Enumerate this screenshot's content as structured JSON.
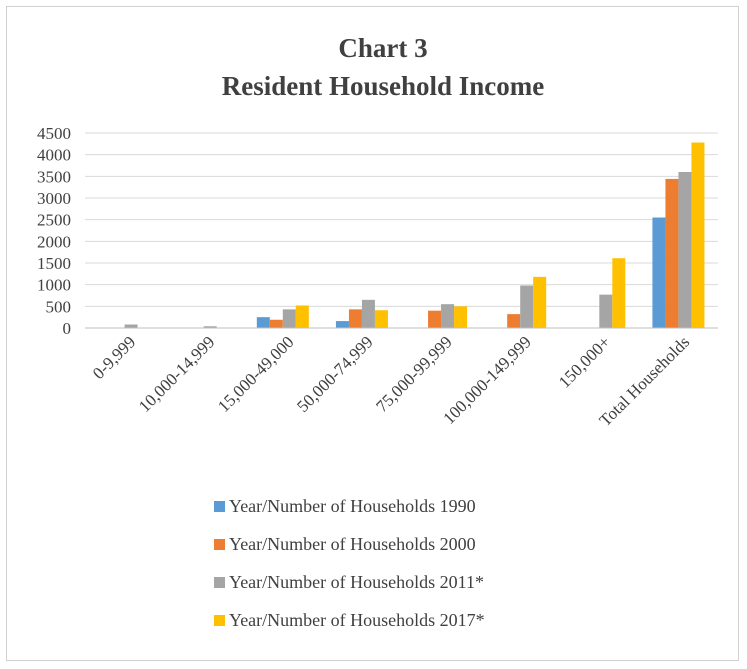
{
  "chart_data": {
    "type": "bar",
    "title": "Chart 3",
    "subtitle": "Resident Household Income",
    "xlabel": "",
    "ylabel": "",
    "ylim": [
      0,
      4500
    ],
    "yticks": [
      0,
      500,
      1000,
      1500,
      2000,
      2500,
      3000,
      3500,
      4000,
      4500
    ],
    "grid": true,
    "legend_position": "bottom",
    "categories": [
      "0-9,999",
      "10,000-14,999",
      "15,000-49,000",
      "50,000-74,999",
      "75,000-99,999",
      "100,000-149,999",
      "150,000+",
      "Total Households"
    ],
    "series": [
      {
        "name": "Year/Number of Households 1990",
        "color": "#5b9bd5",
        "values": [
          0,
          0,
          250,
          160,
          0,
          0,
          0,
          2550
        ]
      },
      {
        "name": "Year/Number of Households 2000",
        "color": "#ed7d31",
        "values": [
          0,
          0,
          190,
          430,
          400,
          320,
          0,
          3440
        ]
      },
      {
        "name": "Year/Number of Households 2011*",
        "color": "#a5a5a5",
        "values": [
          80,
          40,
          430,
          650,
          550,
          980,
          770,
          3600
        ]
      },
      {
        "name": "Year/Number of Households 2017*",
        "color": "#ffc000",
        "values": [
          0,
          0,
          520,
          410,
          500,
          1180,
          1610,
          4280
        ]
      }
    ]
  }
}
